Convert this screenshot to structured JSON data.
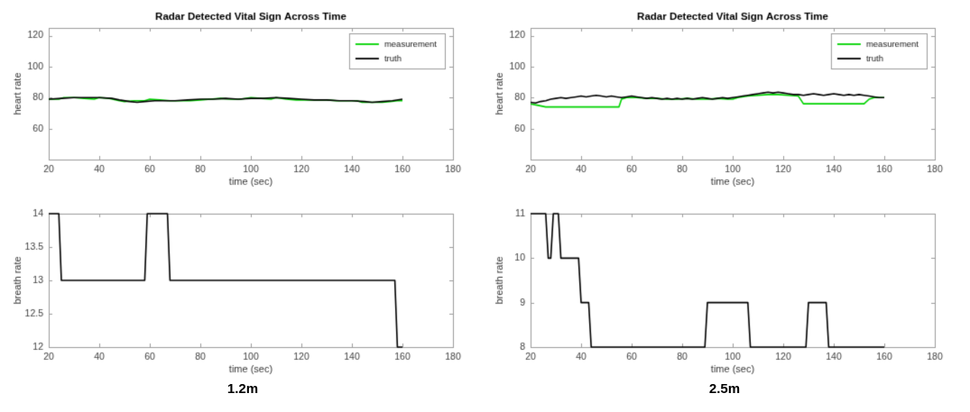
{
  "figure": {
    "captions": {
      "left": "1.2m",
      "right": "2.5m"
    }
  },
  "chart_data": [
    {
      "id": "heart-rate-1.2m",
      "type": "line",
      "title": "Radar Detected Vital Sign Across Time",
      "xlabel": "time (sec)",
      "ylabel": "heart rate",
      "xlim": [
        20,
        180
      ],
      "ylim": [
        40,
        125
      ],
      "xticks": [
        20,
        40,
        60,
        80,
        100,
        120,
        140,
        160,
        180
      ],
      "yticks": [
        60,
        80,
        100,
        120
      ],
      "grid": false,
      "legend_position": "top-right",
      "legend": [
        {
          "name": "measurement",
          "color": "#00d400"
        },
        {
          "name": "truth",
          "color": "#000000"
        }
      ],
      "series": [
        {
          "name": "measurement",
          "color": "#00d400",
          "x": [
            20,
            24,
            26,
            30,
            34,
            38,
            40,
            44,
            48,
            50,
            54,
            58,
            60,
            64,
            68,
            72,
            76,
            80,
            84,
            88,
            92,
            96,
            100,
            104,
            108,
            110,
            114,
            118,
            122,
            126,
            130,
            134,
            138,
            142,
            144,
            148,
            152,
            155,
            158,
            160
          ],
          "y": [
            79,
            79,
            80,
            80,
            79.5,
            79,
            80,
            79.5,
            78,
            77.5,
            78,
            78,
            79,
            78.5,
            78,
            78,
            78,
            78.5,
            79,
            79.5,
            79,
            79,
            80,
            79.5,
            79,
            80,
            79,
            78.5,
            78.5,
            78.5,
            78.5,
            78,
            78,
            78,
            77,
            77,
            77,
            77.5,
            78,
            78
          ]
        },
        {
          "name": "truth",
          "color": "#000000",
          "x": [
            20,
            25,
            30,
            35,
            40,
            45,
            48,
            52,
            55,
            58,
            62,
            66,
            70,
            75,
            80,
            85,
            90,
            95,
            100,
            105,
            110,
            115,
            120,
            125,
            130,
            135,
            140,
            145,
            148,
            152,
            156,
            160
          ],
          "y": [
            79,
            79.5,
            80,
            80,
            80,
            79.5,
            78.5,
            77.5,
            77,
            77.5,
            78,
            78,
            78,
            78.5,
            79,
            79,
            79.5,
            79,
            79.5,
            79.5,
            80,
            79.5,
            79,
            78.5,
            78.5,
            78,
            78,
            77.5,
            77,
            77.5,
            78,
            79
          ]
        }
      ]
    },
    {
      "id": "heart-rate-2.5m",
      "type": "line",
      "title": "Radar Detected Vital Sign Across Time",
      "xlabel": "time (sec)",
      "ylabel": "heart rate",
      "xlim": [
        20,
        180
      ],
      "ylim": [
        40,
        125
      ],
      "xticks": [
        20,
        40,
        60,
        80,
        100,
        120,
        140,
        160,
        180
      ],
      "yticks": [
        60,
        80,
        100,
        120
      ],
      "grid": false,
      "legend_position": "top-right",
      "legend": [
        {
          "name": "measurement",
          "color": "#00d400"
        },
        {
          "name": "truth",
          "color": "#000000"
        }
      ],
      "series": [
        {
          "name": "measurement",
          "color": "#00d400",
          "x": [
            20,
            23,
            26,
            30,
            35,
            40,
            45,
            50,
            55,
            56,
            58,
            62,
            66,
            70,
            74,
            78,
            82,
            86,
            90,
            94,
            98,
            100,
            102,
            106,
            110,
            114,
            118,
            122,
            126,
            128,
            132,
            136,
            140,
            144,
            148,
            152,
            154,
            156,
            158,
            160
          ],
          "y": [
            76,
            75,
            74,
            74,
            74,
            74,
            74,
            74,
            74,
            79,
            80,
            80,
            79.5,
            79.5,
            79,
            79,
            79.5,
            79,
            79,
            79.5,
            79,
            79,
            80,
            81,
            81.5,
            82,
            82,
            81.5,
            81,
            76,
            76,
            76,
            76,
            76,
            76,
            76,
            79,
            80,
            80,
            80
          ]
        },
        {
          "name": "truth",
          "color": "#000000",
          "x": [
            20,
            22,
            24,
            26,
            28,
            30,
            32,
            34,
            36,
            38,
            40,
            42,
            44,
            46,
            48,
            50,
            52,
            54,
            56,
            58,
            60,
            62,
            64,
            66,
            68,
            70,
            72,
            74,
            76,
            78,
            80,
            82,
            84,
            86,
            88,
            90,
            92,
            94,
            96,
            98,
            100,
            102,
            104,
            106,
            108,
            110,
            112,
            114,
            116,
            118,
            120,
            122,
            124,
            126,
            128,
            130,
            132,
            134,
            136,
            138,
            140,
            142,
            144,
            146,
            148,
            150,
            152,
            154,
            156,
            158,
            160
          ],
          "y": [
            77,
            76.5,
            77.5,
            78,
            79,
            79.5,
            80,
            79.5,
            80,
            80.5,
            81,
            80.5,
            81,
            81.5,
            81,
            80.5,
            81,
            80.5,
            80,
            80.5,
            81,
            80.5,
            80,
            79.5,
            80,
            79.5,
            79,
            79.5,
            79,
            79.5,
            79,
            79.5,
            79,
            79.5,
            80,
            79.5,
            79,
            79.5,
            80,
            79.5,
            80,
            80.5,
            81,
            81.5,
            82,
            82.5,
            83,
            83.5,
            83,
            83.5,
            83,
            82.5,
            82,
            82,
            81.5,
            82,
            82.5,
            82,
            81.5,
            82,
            82.5,
            82,
            81.5,
            82,
            81.5,
            82,
            81.5,
            81,
            80.5,
            80,
            80
          ]
        }
      ]
    },
    {
      "id": "breath-rate-1.2m",
      "type": "line",
      "title": "",
      "xlabel": "time (sec)",
      "ylabel": "breath rate",
      "xlim": [
        20,
        180
      ],
      "ylim": [
        12,
        14
      ],
      "xticks": [
        20,
        40,
        60,
        80,
        100,
        120,
        140,
        160,
        180
      ],
      "yticks": [
        12,
        12.5,
        13,
        13.5,
        14
      ],
      "grid": false,
      "legend": null,
      "series": [
        {
          "name": "breath rate",
          "color": "#000000",
          "x": [
            20,
            24,
            25,
            58,
            59,
            67,
            68,
            157,
            158,
            160
          ],
          "y": [
            14,
            14,
            13,
            13,
            14,
            14,
            13,
            13,
            12,
            12
          ]
        }
      ]
    },
    {
      "id": "breath-rate-2.5m",
      "type": "line",
      "title": "",
      "xlabel": "time (sec)",
      "ylabel": "breath rate",
      "xlim": [
        20,
        180
      ],
      "ylim": [
        8,
        11
      ],
      "xticks": [
        20,
        40,
        60,
        80,
        100,
        120,
        140,
        160,
        180
      ],
      "yticks": [
        8,
        9,
        10,
        11
      ],
      "grid": false,
      "legend": null,
      "series": [
        {
          "name": "breath rate",
          "color": "#000000",
          "x": [
            20,
            26,
            27,
            28,
            29,
            31,
            32,
            39,
            40,
            43,
            44,
            89,
            90,
            106,
            107,
            129,
            130,
            137,
            138,
            160
          ],
          "y": [
            11,
            11,
            10,
            10,
            11,
            11,
            10,
            10,
            9,
            9,
            8,
            8,
            9,
            9,
            8,
            8,
            9,
            9,
            8,
            8
          ]
        }
      ]
    }
  ]
}
